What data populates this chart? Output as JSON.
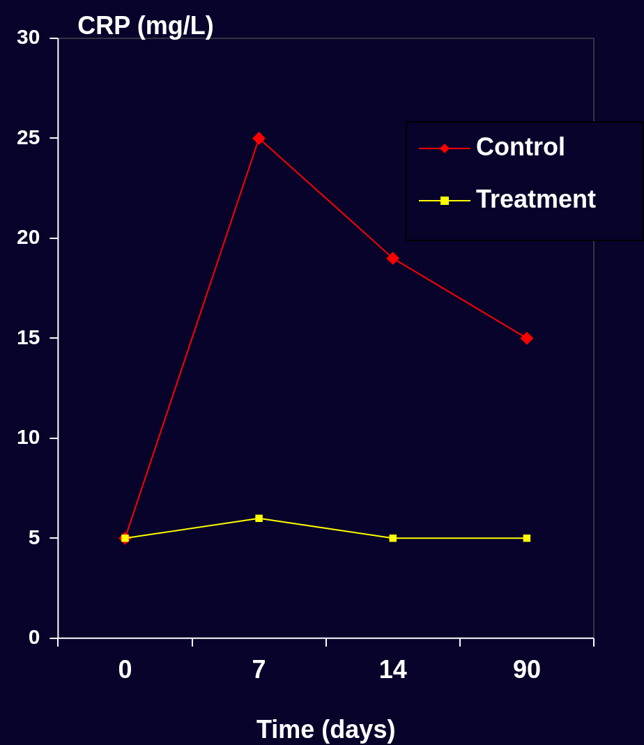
{
  "chart_data": {
    "type": "line",
    "xlabel": "Time (days)",
    "ylabel": "CRP (mg/L)",
    "categories": [
      "0",
      "7",
      "14",
      "90"
    ],
    "series": [
      {
        "name": "Control",
        "color": "#ff0000",
        "marker": "diamond",
        "values": [
          5,
          25,
          19,
          15
        ]
      },
      {
        "name": "Treatment",
        "color": "#ffff00",
        "marker": "square",
        "values": [
          5,
          6,
          5,
          5
        ]
      }
    ],
    "ylim": [
      0,
      30
    ],
    "yticks": [
      0,
      5,
      10,
      15,
      20,
      25,
      30
    ],
    "grid": false,
    "legend": "top right"
  }
}
